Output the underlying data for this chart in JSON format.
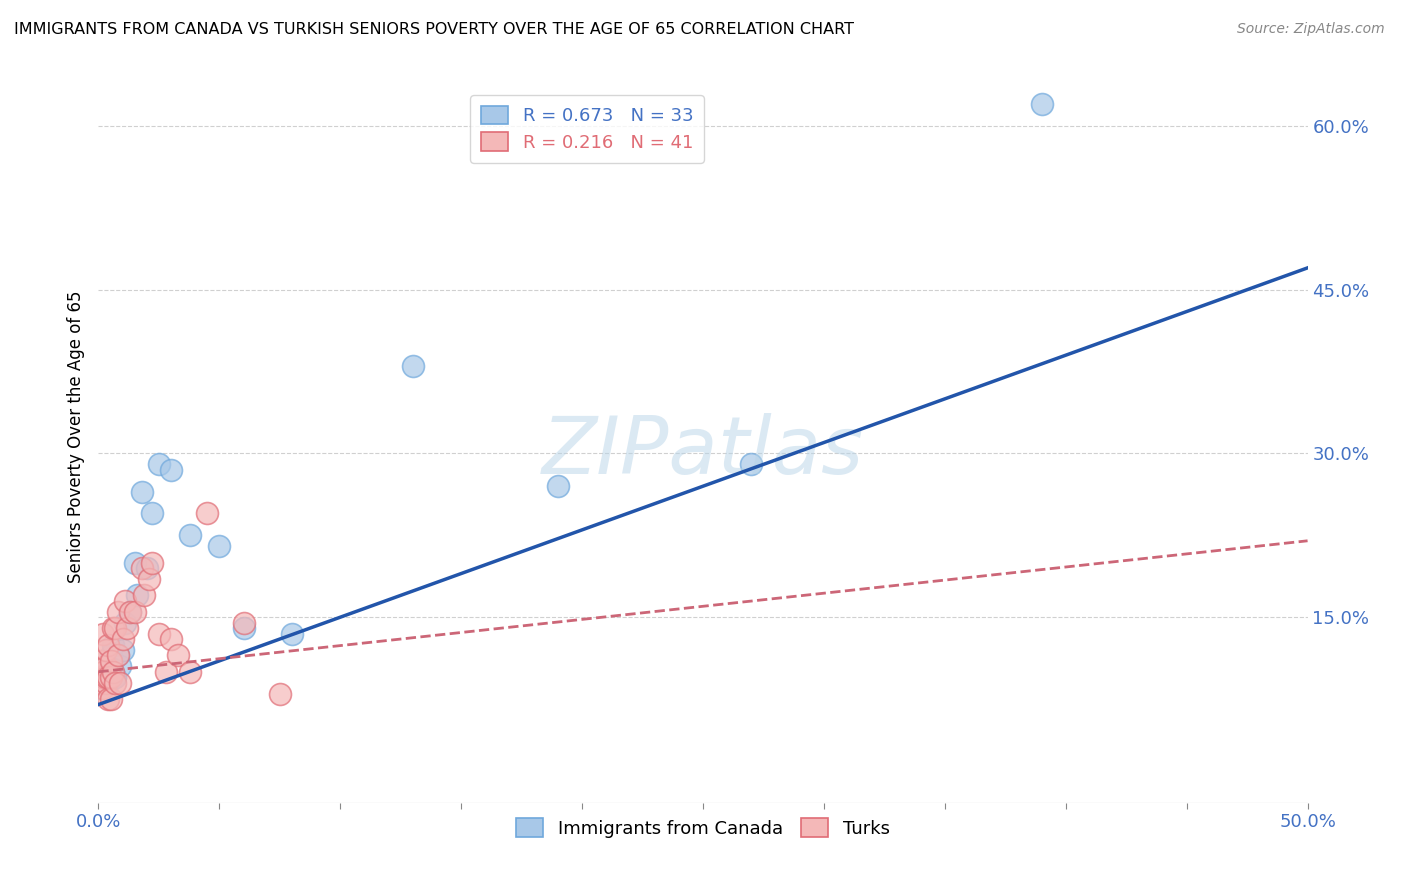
{
  "title": "IMMIGRANTS FROM CANADA VS TURKISH SENIORS POVERTY OVER THE AGE OF 65 CORRELATION CHART",
  "source": "Source: ZipAtlas.com",
  "tick_color": "#4472c4",
  "ylabel": "Seniors Poverty Over the Age of 65",
  "xlim": [
    0.0,
    0.5
  ],
  "ylim": [
    -0.02,
    0.65
  ],
  "y_ticks_right": [
    0.15,
    0.3,
    0.45,
    0.6
  ],
  "y_tick_labels_right": [
    "15.0%",
    "30.0%",
    "45.0%",
    "60.0%"
  ],
  "canada_R": 0.673,
  "canada_N": 33,
  "turks_R": 0.216,
  "turks_N": 41,
  "canada_color": "#a8c8e8",
  "turks_color": "#f4b8b8",
  "canada_edge_color": "#6fa8dc",
  "turks_edge_color": "#e06c75",
  "trendline_canada_color": "#2255aa",
  "trendline_turks_color": "#cc6677",
  "watermark_color": "#b8d4e8",
  "canada_x": [
    0.001,
    0.002,
    0.002,
    0.003,
    0.003,
    0.004,
    0.004,
    0.005,
    0.005,
    0.006,
    0.006,
    0.007,
    0.007,
    0.008,
    0.009,
    0.01,
    0.011,
    0.013,
    0.015,
    0.016,
    0.018,
    0.02,
    0.022,
    0.025,
    0.03,
    0.038,
    0.05,
    0.06,
    0.08,
    0.13,
    0.19,
    0.27,
    0.39
  ],
  "canada_y": [
    0.085,
    0.09,
    0.095,
    0.095,
    0.105,
    0.09,
    0.1,
    0.1,
    0.115,
    0.11,
    0.125,
    0.095,
    0.095,
    0.115,
    0.105,
    0.12,
    0.145,
    0.155,
    0.2,
    0.17,
    0.265,
    0.195,
    0.245,
    0.29,
    0.285,
    0.225,
    0.215,
    0.14,
    0.135,
    0.38,
    0.27,
    0.29,
    0.62
  ],
  "turks_x": [
    0.001,
    0.001,
    0.001,
    0.002,
    0.002,
    0.002,
    0.002,
    0.003,
    0.003,
    0.003,
    0.003,
    0.004,
    0.004,
    0.004,
    0.005,
    0.005,
    0.005,
    0.006,
    0.006,
    0.007,
    0.007,
    0.008,
    0.008,
    0.009,
    0.01,
    0.011,
    0.012,
    0.013,
    0.015,
    0.018,
    0.019,
    0.021,
    0.022,
    0.025,
    0.028,
    0.03,
    0.033,
    0.038,
    0.045,
    0.06,
    0.075
  ],
  "turks_y": [
    0.09,
    0.095,
    0.11,
    0.085,
    0.095,
    0.1,
    0.135,
    0.09,
    0.095,
    0.105,
    0.12,
    0.075,
    0.095,
    0.125,
    0.095,
    0.11,
    0.075,
    0.1,
    0.14,
    0.09,
    0.14,
    0.115,
    0.155,
    0.09,
    0.13,
    0.165,
    0.14,
    0.155,
    0.155,
    0.195,
    0.17,
    0.185,
    0.2,
    0.135,
    0.1,
    0.13,
    0.115,
    0.1,
    0.245,
    0.145,
    0.08
  ]
}
